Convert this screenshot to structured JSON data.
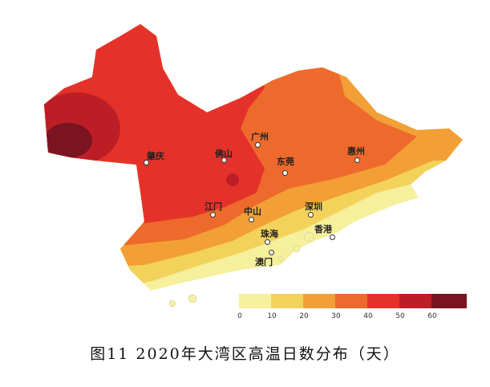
{
  "title": "图11  2020年大湾区高温日数分布（天）",
  "cities": [
    "肇庆",
    "佛山",
    "广州",
    "东莞",
    "惠州",
    "江门",
    "中山",
    "深圳",
    "珠海",
    "香港",
    "澳门"
  ],
  "legend": {
    "ticks": [
      "0",
      "10",
      "20",
      "30",
      "40",
      "50",
      "60"
    ],
    "colors": [
      "#f6f09c",
      "#f3d25c",
      "#f2a035",
      "#ee6a2c",
      "#e4322a",
      "#bd1e26",
      "#7a1420"
    ]
  }
}
